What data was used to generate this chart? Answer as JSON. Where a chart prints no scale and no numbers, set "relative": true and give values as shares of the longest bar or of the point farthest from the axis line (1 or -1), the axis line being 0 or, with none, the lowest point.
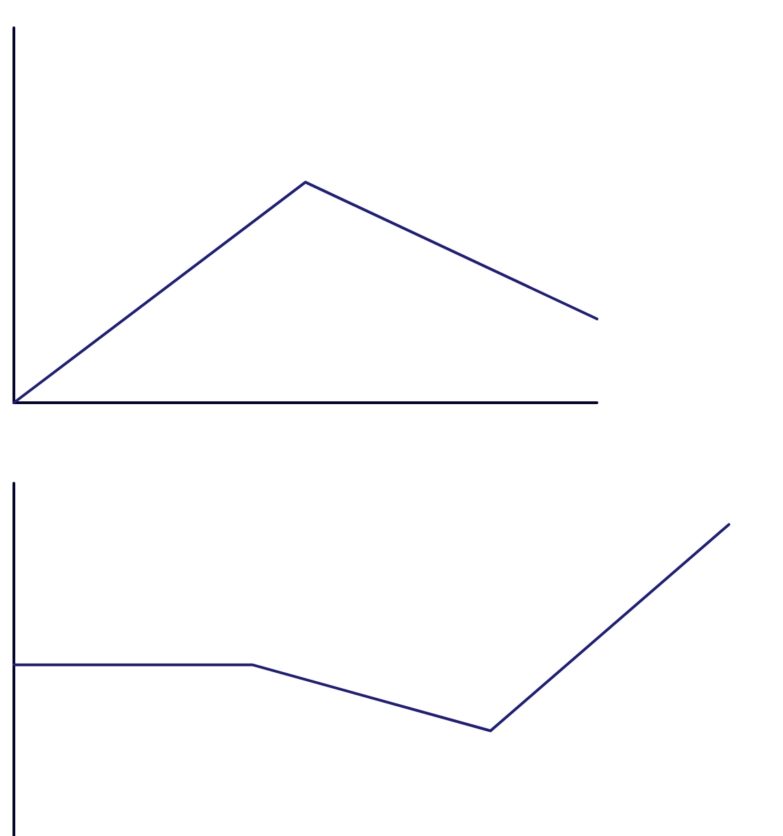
{
  "chart_data": [
    {
      "type": "line",
      "relative": true,
      "categories": [
        null,
        null,
        null
      ],
      "series": [
        {
          "color": "#1f1f7a",
          "values": [
            0,
            1,
            0.38
          ]
        }
      ],
      "marker": "none",
      "line_style": "solid",
      "grid": false,
      "legend": false,
      "tick_labels": false
    },
    {
      "type": "line",
      "relative": true,
      "categories": [
        null,
        null,
        null,
        null
      ],
      "series": [
        {
          "color": "#1f1f7a",
          "values": [
            0.32,
            0.32,
            0,
            1
          ]
        }
      ],
      "marker": "none",
      "line_style": "solid",
      "grid": false,
      "legend": false,
      "tick_labels": false
    }
  ]
}
